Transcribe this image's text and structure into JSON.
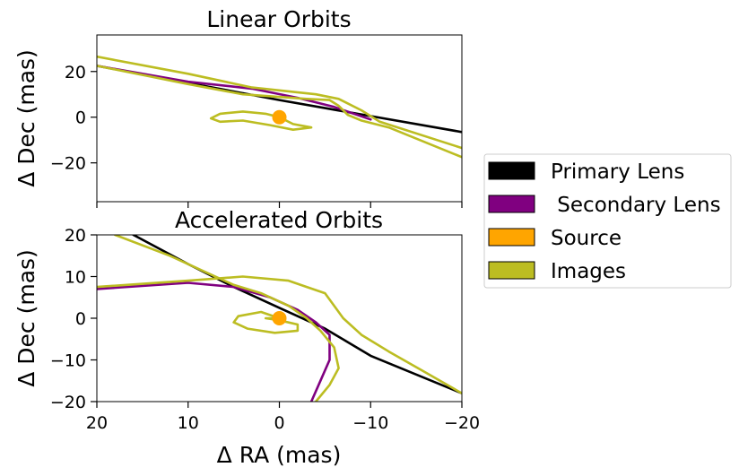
{
  "chart_data": [
    {
      "type": "line",
      "title": "Linear Orbits",
      "xlabel": "",
      "ylabel": "Δ Dec (mas)",
      "xlim": [
        20,
        -20
      ],
      "ylim": [
        -37,
        36
      ],
      "yticks": [
        -20,
        0,
        20
      ],
      "ytick_labels": [
        "−20",
        "0",
        "20"
      ],
      "series": [
        {
          "name": "Primary Lens",
          "color": "#000000",
          "points": [
            [
              20,
              22.5
            ],
            [
              10,
              15
            ],
            [
              0,
              7.5
            ],
            [
              -10,
              0.5
            ],
            [
              -20,
              -6.5
            ]
          ]
        },
        {
          "name": "Secondary Lens",
          "color": "#800080",
          "points": [
            [
              20,
              22.5
            ],
            [
              10,
              15.5
            ],
            [
              3,
              12.5
            ],
            [
              -2,
              8.5
            ],
            [
              -6,
              4.5
            ],
            [
              -10,
              -1
            ]
          ]
        },
        {
          "name": "Images",
          "color": "#bcbd22",
          "points": [
            [
              20,
              26.5
            ],
            [
              10,
              19
            ],
            [
              3,
              13
            ],
            [
              -4,
              10
            ],
            [
              -6.5,
              8
            ],
            [
              -9,
              3
            ],
            [
              -11,
              -2
            ],
            [
              -20,
              -13.5
            ]
          ]
        },
        {
          "name": "Images",
          "color": "#bcbd22",
          "points": [
            [
              20,
              22.5
            ],
            [
              10,
              14.5
            ],
            [
              4,
              10
            ],
            [
              -3,
              8
            ],
            [
              -5.5,
              7.5
            ],
            [
              -6.5,
              5
            ],
            [
              -7.5,
              1
            ],
            [
              -9,
              -1.5
            ],
            [
              -12,
              -4.5
            ],
            [
              -20,
              -17.5
            ]
          ]
        },
        {
          "name": "Images",
          "color": "#bcbd22",
          "points": [
            [
              0,
              0
            ],
            [
              1.5,
              1.5
            ],
            [
              4,
              2.5
            ],
            [
              6.5,
              1.5
            ],
            [
              7.5,
              -0.5
            ],
            [
              6.5,
              -2
            ],
            [
              4,
              -1.5
            ],
            [
              1,
              -3.5
            ],
            [
              -1.5,
              -5.5
            ],
            [
              -3.5,
              -4.5
            ],
            [
              -1.5,
              -3
            ],
            [
              0,
              0
            ]
          ]
        }
      ],
      "source": {
        "name": "Source",
        "color": "#ffa500",
        "x": 0,
        "y": 0
      }
    },
    {
      "type": "line",
      "title": "Accelerated Orbits",
      "xlabel": "Δ RA (mas)",
      "ylabel": "Δ Dec (mas)",
      "xlim": [
        20,
        -20
      ],
      "ylim": [
        -20,
        20
      ],
      "xticks": [
        20,
        10,
        0,
        -10,
        -20
      ],
      "xtick_labels": [
        "20",
        "10",
        "0",
        "−10",
        "−20"
      ],
      "yticks": [
        -20,
        -10,
        0,
        10,
        20
      ],
      "ytick_labels": [
        "−20",
        "−10",
        "0",
        "10",
        "20"
      ],
      "series": [
        {
          "name": "Primary Lens",
          "color": "#000000",
          "points": [
            [
              16,
              20
            ],
            [
              10,
              13
            ],
            [
              5,
              7.5
            ],
            [
              0,
              2.5
            ],
            [
              -5,
              -2.5
            ],
            [
              -10,
              -9
            ],
            [
              -20,
              -18
            ]
          ]
        },
        {
          "name": "Secondary Lens",
          "color": "#800080",
          "points": [
            [
              20,
              7
            ],
            [
              10,
              8.5
            ],
            [
              5,
              7.5
            ],
            [
              1,
              5
            ],
            [
              -2,
              2
            ],
            [
              -4,
              -1
            ],
            [
              -5.5,
              -4
            ],
            [
              -5.5,
              -10
            ],
            [
              -4.5,
              -15
            ],
            [
              -3.5,
              -20
            ]
          ]
        },
        {
          "name": "Images",
          "color": "#bcbd22",
          "points": [
            [
              18,
              20
            ],
            [
              12,
              15
            ],
            [
              8,
              11
            ],
            [
              5,
              8
            ],
            [
              2,
              6
            ],
            [
              -1,
              3
            ],
            [
              -3,
              0
            ],
            [
              -4.5,
              -3
            ],
            [
              -6,
              -7
            ],
            [
              -6.5,
              -12
            ],
            [
              -5.5,
              -16
            ],
            [
              -4,
              -20
            ]
          ]
        },
        {
          "name": "Images",
          "color": "#bcbd22",
          "points": [
            [
              20,
              7.5
            ],
            [
              10,
              9
            ],
            [
              4,
              10
            ],
            [
              -1,
              9
            ],
            [
              -3,
              7.5
            ],
            [
              -5,
              6
            ],
            [
              -6,
              3
            ],
            [
              -7,
              0
            ],
            [
              -9,
              -4
            ],
            [
              -12,
              -8
            ],
            [
              -16,
              -13
            ],
            [
              -20,
              -18
            ]
          ]
        },
        {
          "name": "Images",
          "color": "#bcbd22",
          "points": [
            [
              0,
              0
            ],
            [
              2,
              1.5
            ],
            [
              4.5,
              0.5
            ],
            [
              5,
              -1
            ],
            [
              3.5,
              -2.5
            ],
            [
              0.5,
              -3.5
            ],
            [
              -2,
              -3
            ],
            [
              -2,
              -1.5
            ],
            [
              0,
              -0.5
            ],
            [
              1.5,
              0
            ],
            [
              0,
              0
            ]
          ]
        }
      ],
      "source": {
        "name": "Source",
        "color": "#ffa500",
        "x": 0,
        "y": 0
      }
    }
  ],
  "legend": {
    "placement": "right",
    "items": [
      {
        "label": "Primary Lens",
        "color": "#000000"
      },
      {
        "label": " Secondary Lens",
        "color": "#800080"
      },
      {
        "label": "Source",
        "color": "#ffa500"
      },
      {
        "label": "Images",
        "color": "#bcbd22"
      }
    ]
  }
}
